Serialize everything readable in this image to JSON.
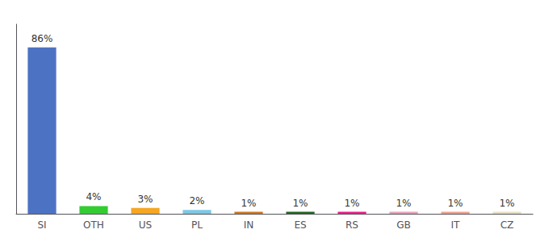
{
  "chart_data": {
    "type": "bar",
    "categories": [
      "SI",
      "OTH",
      "US",
      "PL",
      "IN",
      "ES",
      "RS",
      "GB",
      "IT",
      "CZ"
    ],
    "values": [
      86,
      4,
      3,
      2,
      1,
      1,
      1,
      1,
      1,
      1
    ],
    "value_labels": [
      "86%",
      "4%",
      "3%",
      "2%",
      "1%",
      "1%",
      "1%",
      "1%",
      "1%",
      "1%"
    ],
    "colors": [
      "#4c72c4",
      "#33cc33",
      "#f5a623",
      "#7ec8e3",
      "#cc7722",
      "#226622",
      "#e91e8c",
      "#e8a0b8",
      "#f0a090",
      "#e8e0c0"
    ],
    "ylim": [
      0,
      98
    ],
    "data_labels": true,
    "tick_labels": "x",
    "grid": false
  }
}
